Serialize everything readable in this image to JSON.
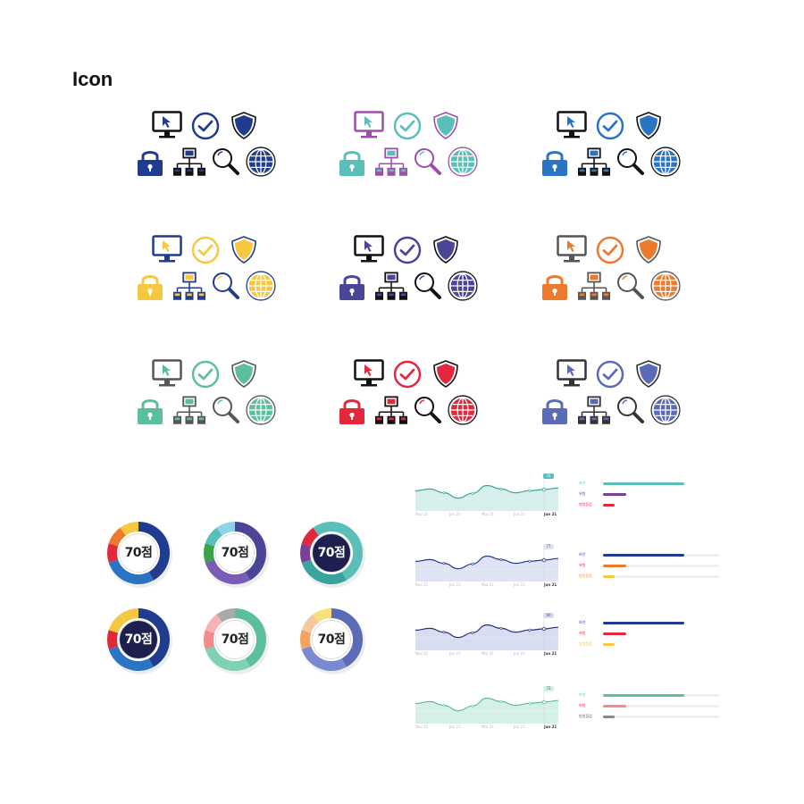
{
  "page": {
    "title": "Icon"
  },
  "icon_sets": [
    {
      "id": "navy",
      "colors": {
        "monitor": "#111111",
        "screen": "#ffffff",
        "cursor": "#1f3c8f",
        "check": "#1f3c8f",
        "shield": "#1f3c8f",
        "lock": "#1f3c8f",
        "network": "#111111",
        "magnifier": "#111111",
        "globe": "#1f3c8f"
      }
    },
    {
      "id": "teal",
      "colors": {
        "monitor": "#9b4fa8",
        "screen": "#ffffff",
        "cursor": "#5bbfb9",
        "check": "#5bbfb9",
        "shield": "#5bbfb9",
        "lock": "#5bbfb9",
        "network": "#9b4fa8",
        "magnifier": "#9b4fa8",
        "globe": "#5bbfb9"
      }
    },
    {
      "id": "blue",
      "colors": {
        "monitor": "#111111",
        "screen": "#ffffff",
        "cursor": "#2b74c4",
        "check": "#2b74c4",
        "shield": "#2b74c4",
        "lock": "#2b74c4",
        "network": "#111111",
        "magnifier": "#111111",
        "globe": "#2b74c4"
      }
    },
    {
      "id": "yellow",
      "colors": {
        "monitor": "#1f3c8f",
        "screen": "#ffffff",
        "cursor": "#f5c842",
        "check": "#f5c842",
        "shield": "#f5c842",
        "lock": "#f5c842",
        "network": "#1f3c8f",
        "magnifier": "#1f3c8f",
        "globe": "#f5c842"
      }
    },
    {
      "id": "indigo",
      "colors": {
        "monitor": "#111111",
        "screen": "#ffffff",
        "cursor": "#4a4597",
        "check": "#4a4597",
        "shield": "#4a4597",
        "lock": "#4a4597",
        "network": "#111111",
        "magnifier": "#111111",
        "globe": "#4a4597"
      }
    },
    {
      "id": "orange",
      "colors": {
        "monitor": "#555555",
        "screen": "#ffffff",
        "cursor": "#ec7a2c",
        "check": "#ec7a2c",
        "shield": "#ec7a2c",
        "lock": "#ec7a2c",
        "network": "#555555",
        "magnifier": "#555555",
        "globe": "#ec7a2c"
      }
    },
    {
      "id": "green",
      "colors": {
        "monitor": "#555555",
        "screen": "#ffffff",
        "cursor": "#5cbf9c",
        "check": "#5cbf9c",
        "shield": "#5cbf9c",
        "lock": "#5cbf9c",
        "network": "#555555",
        "magnifier": "#555555",
        "globe": "#5cbf9c"
      }
    },
    {
      "id": "red",
      "colors": {
        "monitor": "#111111",
        "screen": "#ffffff",
        "cursor": "#e3283e",
        "check": "#e3283e",
        "shield": "#e3283e",
        "lock": "#e3283e",
        "network": "#111111",
        "magnifier": "#111111",
        "globe": "#e3283e"
      }
    },
    {
      "id": "slate",
      "colors": {
        "monitor": "#333333",
        "screen": "#ffffff",
        "cursor": "#5b6bb5",
        "check": "#5b6bb5",
        "shield": "#5b6bb5",
        "lock": "#5b6bb5",
        "network": "#333333",
        "magnifier": "#333333",
        "globe": "#5b6bb5"
      }
    }
  ],
  "score_donuts": [
    {
      "label": "70점",
      "center_color": "#ffffff",
      "text_color": "#222222",
      "ring_colors": [
        "#1f3c8f",
        "#2b74c4",
        "#e3283e",
        "#ec7a2c",
        "#f5c842"
      ]
    },
    {
      "label": "70점",
      "center_color": "#ffffff",
      "text_color": "#222222",
      "ring_colors": [
        "#4a4597",
        "#7a5bb5",
        "#3aa34a",
        "#5bbfb9",
        "#8fd3e8"
      ]
    },
    {
      "label": "70점",
      "center_color": "#1d1f4f",
      "text_color": "#ffffff",
      "ring_colors": [
        "#5bbfb9",
        "#3aa3a0",
        "#7a3f98",
        "#e3283e",
        "#5bbfb9"
      ]
    },
    {
      "label": "70점",
      "center_color": "#1d1f4f",
      "text_color": "#ffffff",
      "ring_colors": [
        "#1f3c8f",
        "#2b74c4",
        "#e3283e",
        "#f5c842",
        "#f5c842"
      ]
    },
    {
      "label": "70점",
      "center_color": "#ffffff",
      "text_color": "#222222",
      "ring_colors": [
        "#5cbf9c",
        "#7fd1b1",
        "#f28b8b",
        "#f7b3b3",
        "#aaaaaa"
      ]
    },
    {
      "label": "70점",
      "center_color": "#ffffff",
      "text_color": "#222222",
      "ring_colors": [
        "#5b6bb5",
        "#7a8ad0",
        "#f4a261",
        "#f7c8a0",
        "#f5e07a"
      ]
    }
  ],
  "mini_charts": [
    {
      "line_color": "#3aa39c",
      "fill_color": "#d6efed",
      "tooltip_color": "#5bbfb9",
      "tooltip": "72",
      "x_ticks": [
        "Nov 21",
        "Jan 21",
        "Mar 21",
        "Jun 21",
        "Jun 21"
      ],
      "values": [
        0.55,
        0.62,
        0.48,
        0.28,
        0.46,
        0.75,
        0.62,
        0.48,
        0.56,
        0.6,
        0.66
      ]
    },
    {
      "line_color": "#1f3c8f",
      "fill_color": "#dfe4f4",
      "tooltip_color": "#dfe4f4",
      "tooltip": "77",
      "x_ticks": [
        "Nov 21",
        "Jan 21",
        "Mar 21",
        "Jun 21",
        "Jun 21"
      ],
      "values": [
        0.55,
        0.62,
        0.48,
        0.28,
        0.46,
        0.75,
        0.62,
        0.48,
        0.56,
        0.6,
        0.66
      ]
    },
    {
      "line_color": "#2a2f7a",
      "fill_color": "#d9ddf1",
      "tooltip_color": "#d9ddf1",
      "tooltip": "90",
      "x_ticks": [
        "Nov 21",
        "Jan 21",
        "Mar 21",
        "Jun 21",
        "Jun 21"
      ],
      "values": [
        0.55,
        0.62,
        0.48,
        0.28,
        0.46,
        0.75,
        0.62,
        0.48,
        0.56,
        0.6,
        0.66
      ]
    },
    {
      "line_color": "#5cbf9c",
      "fill_color": "#d5f0e5",
      "tooltip_color": "#d5f0e5",
      "tooltip": "72",
      "x_ticks": [
        "Nov 21",
        "Jan 21",
        "Mar 21",
        "Jun 21",
        "Jun 21"
      ],
      "values": [
        0.55,
        0.62,
        0.48,
        0.28,
        0.46,
        0.75,
        0.62,
        0.48,
        0.56,
        0.6,
        0.66
      ]
    }
  ],
  "bar_groups": [
    {
      "track_color": "#ffffff",
      "bars": [
        {
          "label": "보안",
          "label_color": "#5bbfb9",
          "fill_color": "#5bbfb9",
          "value": 0.7
        },
        {
          "label": "위험",
          "label_color": "#7a3f98",
          "fill_color": "#7a3f98",
          "value": 0.2
        },
        {
          "label": "방법점검",
          "label_color": "#e3283e",
          "fill_color": "#e3283e",
          "value": 0.1
        }
      ]
    },
    {
      "track_color": "#eef0f6",
      "bars": [
        {
          "label": "보안",
          "label_color": "#1f3c8f",
          "fill_color": "#1f3c8f",
          "value": 0.7
        },
        {
          "label": "위험",
          "label_color": "#e3283e",
          "fill_color": "#ec7a2c",
          "value": 0.2
        },
        {
          "label": "방법점검",
          "label_color": "#ec9a2c",
          "fill_color": "#f5c842",
          "value": 0.1
        }
      ]
    },
    {
      "track_color": "#ffffff",
      "bars": [
        {
          "label": "보안",
          "label_color": "#1f3c8f",
          "fill_color": "#1f3c8f",
          "value": 0.7
        },
        {
          "label": "위험",
          "label_color": "#e3283e",
          "fill_color": "#e3283e",
          "value": 0.2
        },
        {
          "label": "방법점검",
          "label_color": "#f5c842",
          "fill_color": "#f5c842",
          "value": 0.1
        }
      ]
    },
    {
      "track_color": "#eef0f6",
      "bars": [
        {
          "label": "보안",
          "label_color": "#5cbf9c",
          "fill_color": "#5cbf9c",
          "value": 0.7
        },
        {
          "label": "위험",
          "label_color": "#e3283e",
          "fill_color": "#f28b8b",
          "value": 0.2
        },
        {
          "label": "방법점검",
          "label_color": "#555555",
          "fill_color": "#888888",
          "value": 0.1
        }
      ]
    }
  ]
}
